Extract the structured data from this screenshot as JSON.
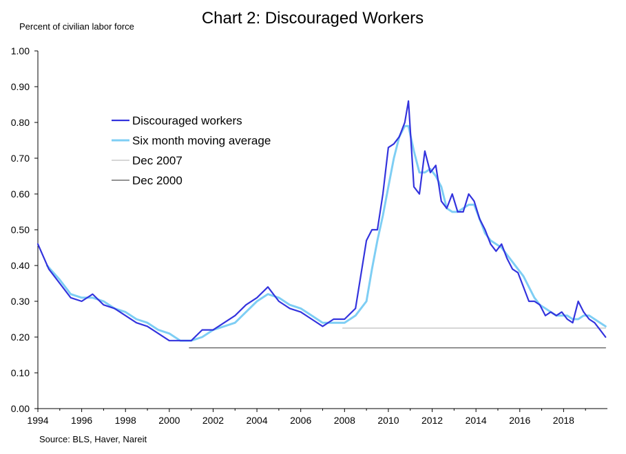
{
  "chart_data": {
    "type": "line",
    "title": "Chart 2: Discouraged Workers",
    "ylabel": "Percent of civilian labor force",
    "xlabel": "",
    "source": "Source: BLS, Haver, Nareit",
    "ylim": [
      0,
      1.0
    ],
    "xlim": [
      1994,
      2020
    ],
    "y_ticks": [
      "0.00",
      "0.10",
      "0.20",
      "0.30",
      "0.40",
      "0.50",
      "0.60",
      "0.70",
      "0.80",
      "0.90",
      "1.00"
    ],
    "x_ticks": [
      "1994",
      "1996",
      "1998",
      "2000",
      "2002",
      "2004",
      "2006",
      "2008",
      "2010",
      "2012",
      "2014",
      "2016",
      "2018"
    ],
    "grid": false,
    "legend_position": "upper-left",
    "legend": [
      "Discouraged workers",
      "Six month moving average",
      "Dec 2007",
      "Dec 2000"
    ],
    "colors": {
      "discouraged": "#3333dd",
      "moving_average": "#7ecef4",
      "dec2007": "#c8c8c8",
      "dec2000": "#6e6e6e"
    },
    "series": [
      {
        "name": "Discouraged workers",
        "note": "monthly, Jan 1994 - late 2019 (values estimated from plot)",
        "x": [
          "1994-01",
          "1994-07",
          "1995-01",
          "1995-07",
          "1996-01",
          "1996-07",
          "1997-01",
          "1997-07",
          "1998-01",
          "1998-07",
          "1999-01",
          "1999-07",
          "2000-01",
          "2000-07",
          "2001-01",
          "2001-07",
          "2002-01",
          "2002-07",
          "2003-01",
          "2003-07",
          "2004-01",
          "2004-07",
          "2005-01",
          "2005-07",
          "2006-01",
          "2006-07",
          "2007-01",
          "2007-07",
          "2008-01",
          "2008-07",
          "2009-01",
          "2009-04",
          "2009-07",
          "2009-10",
          "2010-01",
          "2010-04",
          "2010-07",
          "2010-10",
          "2010-12",
          "2011-03",
          "2011-06",
          "2011-09",
          "2011-12",
          "2012-03",
          "2012-06",
          "2012-09",
          "2012-12",
          "2013-03",
          "2013-06",
          "2013-09",
          "2013-12",
          "2014-03",
          "2014-06",
          "2014-09",
          "2014-12",
          "2015-03",
          "2015-06",
          "2015-09",
          "2015-12",
          "2016-03",
          "2016-06",
          "2016-09",
          "2016-12",
          "2017-03",
          "2017-06",
          "2017-09",
          "2017-12",
          "2018-03",
          "2018-06",
          "2018-09",
          "2018-12",
          "2019-03",
          "2019-06",
          "2019-09",
          "2019-12"
        ],
        "values": [
          0.46,
          0.39,
          0.35,
          0.31,
          0.3,
          0.32,
          0.29,
          0.28,
          0.26,
          0.24,
          0.23,
          0.21,
          0.19,
          0.19,
          0.19,
          0.22,
          0.22,
          0.24,
          0.26,
          0.29,
          0.31,
          0.34,
          0.3,
          0.28,
          0.27,
          0.25,
          0.23,
          0.25,
          0.25,
          0.28,
          0.47,
          0.5,
          0.5,
          0.6,
          0.73,
          0.74,
          0.76,
          0.8,
          0.86,
          0.62,
          0.6,
          0.72,
          0.66,
          0.68,
          0.58,
          0.56,
          0.6,
          0.55,
          0.55,
          0.6,
          0.58,
          0.53,
          0.5,
          0.46,
          0.44,
          0.46,
          0.42,
          0.39,
          0.38,
          0.34,
          0.3,
          0.3,
          0.29,
          0.26,
          0.27,
          0.26,
          0.27,
          0.25,
          0.24,
          0.3,
          0.27,
          0.25,
          0.24,
          0.22,
          0.2
        ]
      },
      {
        "name": "Six month moving average",
        "x": [
          "1994-06",
          "1995-01",
          "1995-07",
          "1996-01",
          "1996-07",
          "1997-01",
          "1997-07",
          "1998-01",
          "1998-07",
          "1999-01",
          "1999-07",
          "2000-01",
          "2000-07",
          "2001-01",
          "2001-07",
          "2002-01",
          "2002-07",
          "2003-01",
          "2003-07",
          "2004-01",
          "2004-07",
          "2005-01",
          "2005-07",
          "2006-01",
          "2006-07",
          "2007-01",
          "2007-07",
          "2008-01",
          "2008-07",
          "2009-01",
          "2009-04",
          "2009-07",
          "2009-10",
          "2010-01",
          "2010-04",
          "2010-07",
          "2010-10",
          "2010-12",
          "2011-03",
          "2011-06",
          "2011-09",
          "2011-12",
          "2012-03",
          "2012-06",
          "2012-09",
          "2012-12",
          "2013-03",
          "2013-06",
          "2013-09",
          "2013-12",
          "2014-03",
          "2014-06",
          "2014-09",
          "2014-12",
          "2015-03",
          "2015-06",
          "2015-09",
          "2015-12",
          "2016-03",
          "2016-06",
          "2016-09",
          "2016-12",
          "2017-03",
          "2017-06",
          "2017-09",
          "2017-12",
          "2018-03",
          "2018-06",
          "2018-09",
          "2018-12",
          "2019-03",
          "2019-06",
          "2019-09",
          "2019-12"
        ],
        "values": [
          0.4,
          0.36,
          0.32,
          0.31,
          0.31,
          0.3,
          0.28,
          0.27,
          0.25,
          0.24,
          0.22,
          0.21,
          0.19,
          0.19,
          0.2,
          0.22,
          0.23,
          0.24,
          0.27,
          0.3,
          0.32,
          0.31,
          0.29,
          0.28,
          0.26,
          0.24,
          0.24,
          0.24,
          0.26,
          0.3,
          0.39,
          0.47,
          0.54,
          0.62,
          0.7,
          0.76,
          0.79,
          0.79,
          0.72,
          0.66,
          0.66,
          0.67,
          0.65,
          0.62,
          0.56,
          0.55,
          0.55,
          0.56,
          0.57,
          0.57,
          0.53,
          0.49,
          0.47,
          0.46,
          0.45,
          0.43,
          0.41,
          0.39,
          0.37,
          0.34,
          0.31,
          0.29,
          0.28,
          0.27,
          0.26,
          0.26,
          0.26,
          0.25,
          0.25,
          0.26,
          0.26,
          0.25,
          0.24,
          0.23
        ]
      },
      {
        "name": "Dec 2007",
        "x": [
          "2007-12",
          "2019-12"
        ],
        "values": [
          0.225,
          0.225
        ]
      },
      {
        "name": "Dec 2000",
        "x": [
          "2000-12",
          "2019-12"
        ],
        "values": [
          0.17,
          0.17
        ]
      }
    ]
  }
}
